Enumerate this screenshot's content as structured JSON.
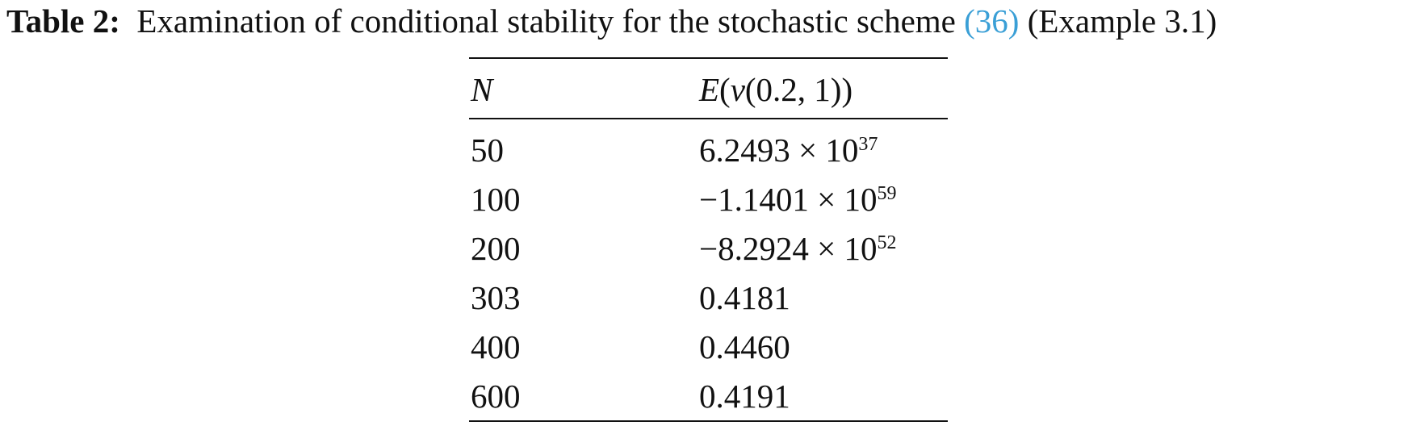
{
  "caption": {
    "label": "Table 2:",
    "text_before": "Examination of conditional stability for the stochastic scheme",
    "ref": "(36)",
    "text_after": "(Example 3.1)"
  },
  "table": {
    "headers": {
      "n": "N",
      "e_prefix": "E",
      "e_rest": "(",
      "e_v": "v",
      "e_args": "(0.2, 1))"
    },
    "rows": [
      {
        "n": "50",
        "mantissa": "6.2493 × 10",
        "exponent": "37"
      },
      {
        "n": "100",
        "mantissa": "−1.1401 × 10",
        "exponent": "59"
      },
      {
        "n": "200",
        "mantissa": "−8.2924 × 10",
        "exponent": "52"
      },
      {
        "n": "303",
        "mantissa": "0.4181",
        "exponent": ""
      },
      {
        "n": "400",
        "mantissa": "0.4460",
        "exponent": ""
      },
      {
        "n": "600",
        "mantissa": "0.4191",
        "exponent": ""
      }
    ]
  }
}
